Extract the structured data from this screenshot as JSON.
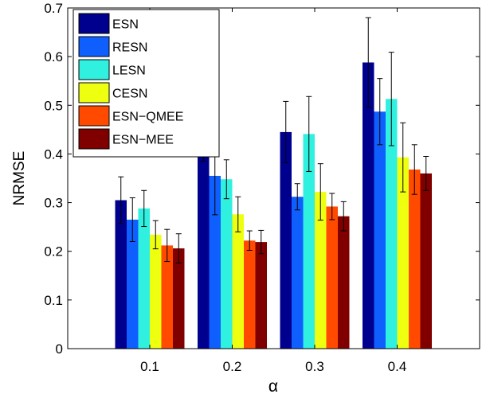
{
  "chart_data": {
    "type": "bar",
    "xlabel": "α",
    "ylabel": "NRMSE",
    "categories": [
      "0.1",
      "0.2",
      "0.3",
      "0.4"
    ],
    "ylim": [
      0,
      0.7
    ],
    "yticks": [
      "0",
      "0.1",
      "0.2",
      "0.3",
      "0.4",
      "0.5",
      "0.6",
      "0.7"
    ],
    "legend_position": "top-left",
    "error_bars": true,
    "series": [
      {
        "name": "ESN",
        "color": "#00008f",
        "values": [
          0.305,
          0.445,
          0.445,
          0.588
        ],
        "errors": [
          0.048,
          0.06,
          0.063,
          0.092
        ]
      },
      {
        "name": "RESN",
        "color": "#0f5fff",
        "values": [
          0.265,
          0.355,
          0.312,
          0.487
        ],
        "errors": [
          0.045,
          0.08,
          0.027,
          0.068
        ]
      },
      {
        "name": "LESN",
        "color": "#30f0e0",
        "values": [
          0.288,
          0.348,
          0.441,
          0.513
        ],
        "errors": [
          0.037,
          0.04,
          0.077,
          0.096
        ]
      },
      {
        "name": "CESN",
        "color": "#eeff10",
        "values": [
          0.234,
          0.276,
          0.322,
          0.393
        ],
        "errors": [
          0.029,
          0.036,
          0.058,
          0.071
        ]
      },
      {
        "name": "ESN−QMEE",
        "color": "#ff4a00",
        "values": [
          0.212,
          0.222,
          0.292,
          0.368
        ],
        "errors": [
          0.033,
          0.02,
          0.027,
          0.051
        ]
      },
      {
        "name": "ESN−MEE",
        "color": "#800000",
        "values": [
          0.206,
          0.219,
          0.272,
          0.36
        ],
        "errors": [
          0.03,
          0.024,
          0.03,
          0.035
        ]
      }
    ]
  }
}
